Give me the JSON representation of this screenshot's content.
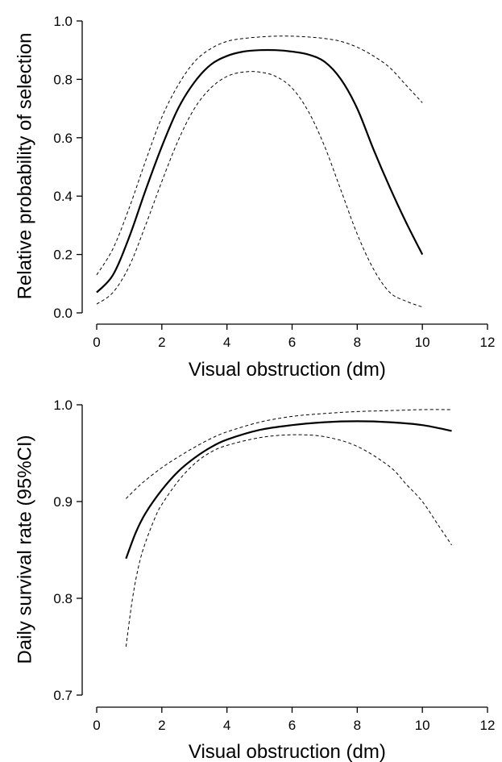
{
  "chart_data": [
    {
      "type": "line",
      "xlabel": "Visual obstruction (dm)",
      "ylabel": "Relative probability of selection",
      "xlim": [
        0,
        12
      ],
      "ylim": [
        0,
        1
      ],
      "xticks": [
        "0",
        "2",
        "4",
        "6",
        "8",
        "10",
        "12"
      ],
      "yticks": [
        "0.0",
        "0.2",
        "0.4",
        "0.6",
        "0.8",
        "1.0"
      ],
      "series": [
        {
          "style": "solid",
          "x": [
            0,
            0.5,
            1,
            1.5,
            2,
            2.5,
            3,
            3.5,
            4,
            4.5,
            5,
            5.5,
            6,
            6.5,
            7,
            7.5,
            8,
            8.5,
            9,
            9.5,
            10
          ],
          "y": [
            0.07,
            0.13,
            0.26,
            0.42,
            0.57,
            0.7,
            0.79,
            0.85,
            0.88,
            0.895,
            0.9,
            0.9,
            0.895,
            0.885,
            0.86,
            0.8,
            0.7,
            0.56,
            0.43,
            0.31,
            0.2
          ]
        },
        {
          "style": "dashed",
          "x": [
            0,
            0.5,
            1,
            1.5,
            2,
            2.5,
            3,
            3.5,
            4,
            4.5,
            5,
            5.5,
            6,
            6.5,
            7,
            7.5,
            8,
            8.5,
            9,
            9.5,
            10
          ],
          "y": [
            0.13,
            0.22,
            0.36,
            0.52,
            0.67,
            0.78,
            0.86,
            0.905,
            0.93,
            0.94,
            0.945,
            0.948,
            0.948,
            0.945,
            0.94,
            0.93,
            0.91,
            0.88,
            0.84,
            0.78,
            0.72
          ]
        },
        {
          "style": "dashed",
          "x": [
            0,
            0.5,
            1,
            1.5,
            2,
            2.5,
            3,
            3.5,
            4,
            4.5,
            5,
            5.5,
            6,
            6.5,
            7,
            7.5,
            8,
            8.5,
            9,
            9.5,
            10
          ],
          "y": [
            0.03,
            0.07,
            0.16,
            0.3,
            0.45,
            0.59,
            0.7,
            0.77,
            0.81,
            0.825,
            0.825,
            0.81,
            0.77,
            0.69,
            0.57,
            0.42,
            0.27,
            0.15,
            0.07,
            0.04,
            0.02
          ]
        }
      ]
    },
    {
      "type": "line",
      "xlabel": "Visual obstruction (dm)",
      "ylabel": "Daily survival rate (95%CI)",
      "xlim": [
        0,
        12
      ],
      "ylim": [
        0.7,
        1.0
      ],
      "xticks": [
        "0",
        "2",
        "4",
        "6",
        "8",
        "10",
        "12"
      ],
      "yticks": [
        "0.7",
        "0.8",
        "0.9",
        "1.0"
      ],
      "series": [
        {
          "style": "solid",
          "x": [
            0.9,
            1.2,
            1.5,
            2,
            2.5,
            3,
            3.5,
            4,
            5,
            6,
            7,
            8,
            9,
            10,
            10.9
          ],
          "y": [
            0.841,
            0.868,
            0.888,
            0.912,
            0.931,
            0.945,
            0.956,
            0.964,
            0.974,
            0.979,
            0.982,
            0.983,
            0.982,
            0.979,
            0.973
          ]
        },
        {
          "style": "dashed",
          "x": [
            0.9,
            1.2,
            1.5,
            2,
            2.5,
            3,
            3.5,
            4,
            5,
            6,
            7,
            8,
            9,
            10,
            10.9
          ],
          "y": [
            0.903,
            0.913,
            0.922,
            0.935,
            0.946,
            0.956,
            0.965,
            0.972,
            0.982,
            0.988,
            0.991,
            0.993,
            0.994,
            0.995,
            0.995
          ]
        },
        {
          "style": "dashed",
          "x": [
            0.9,
            1.1,
            1.3,
            1.5,
            1.8,
            2,
            2.5,
            3,
            3.5,
            4,
            5,
            6,
            7,
            8,
            9,
            9.5,
            10,
            10.5,
            10.9
          ],
          "y": [
            0.75,
            0.8,
            0.835,
            0.858,
            0.884,
            0.897,
            0.921,
            0.939,
            0.951,
            0.958,
            0.966,
            0.969,
            0.967,
            0.957,
            0.936,
            0.918,
            0.9,
            0.875,
            0.855
          ]
        }
      ]
    }
  ]
}
